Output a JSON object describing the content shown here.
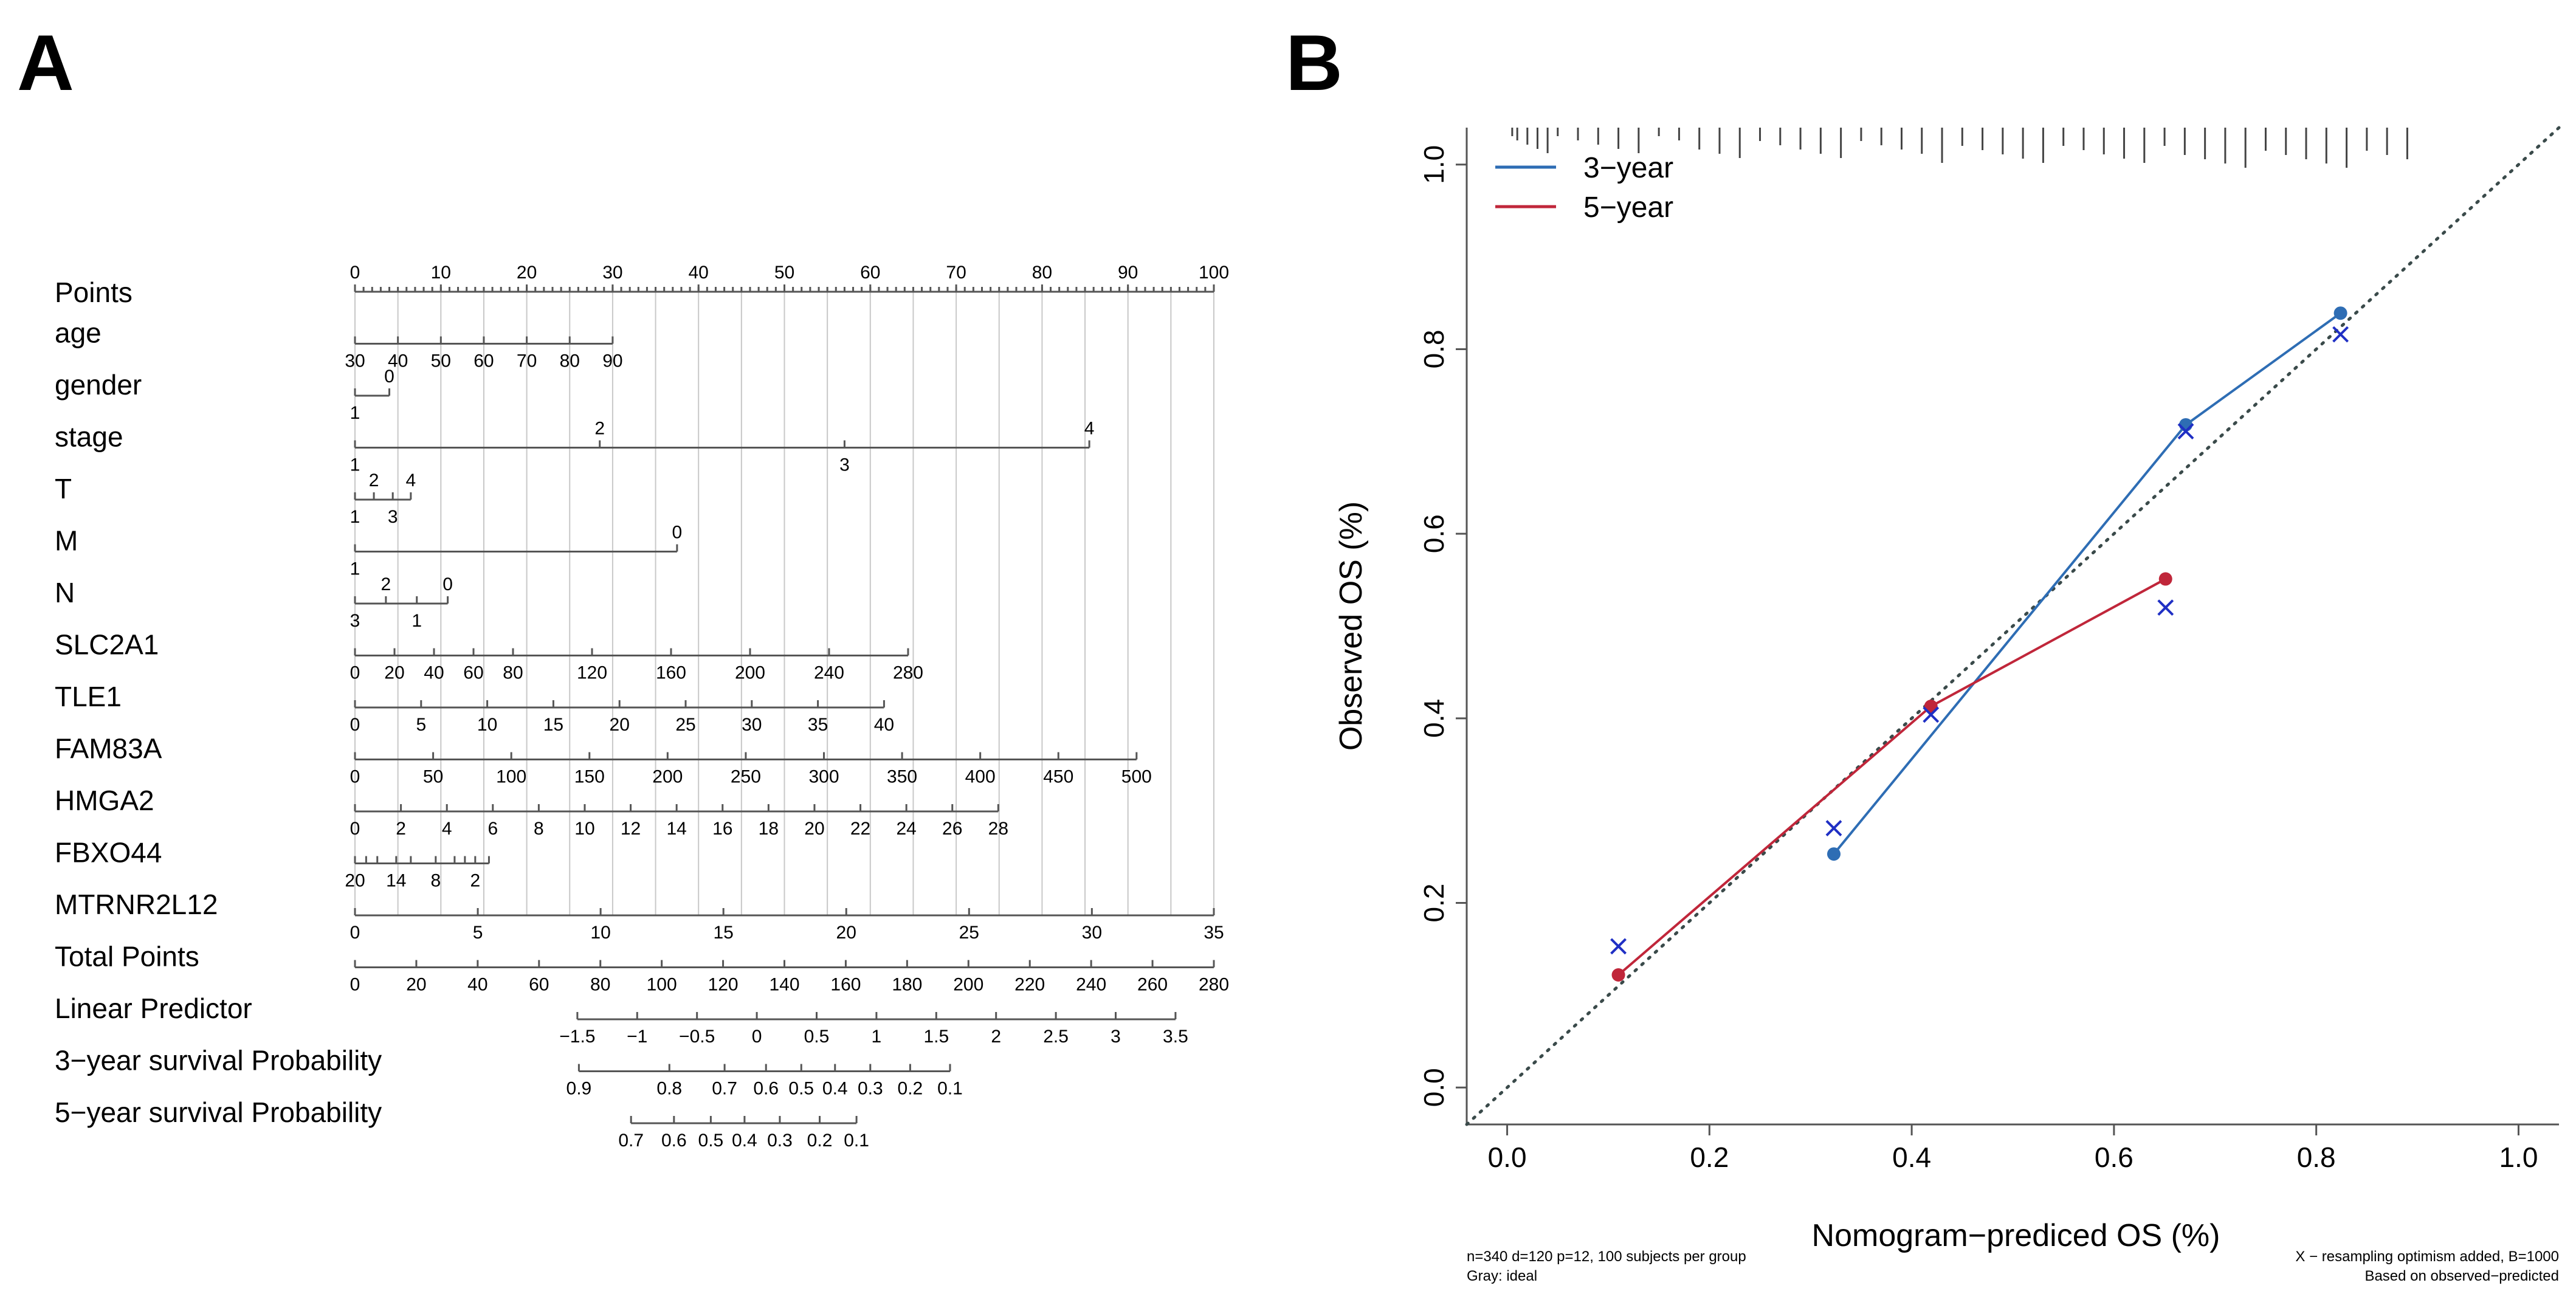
{
  "panels": {
    "a_label": "A",
    "b_label": "B"
  },
  "chart_data": [
    {
      "type": "nomogram",
      "point_range": [
        0,
        100
      ],
      "total_point_range": [
        0,
        280
      ],
      "rows": [
        {
          "name": "Points",
          "ticks": [
            {
              "t": "0",
              "p": 0,
              "pos": "above"
            },
            {
              "t": "10",
              "p": 10,
              "pos": "above"
            },
            {
              "t": "20",
              "p": 20,
              "pos": "above"
            },
            {
              "t": "30",
              "p": 30,
              "pos": "above"
            },
            {
              "t": "40",
              "p": 40,
              "pos": "above"
            },
            {
              "t": "50",
              "p": 50,
              "pos": "above"
            },
            {
              "t": "60",
              "p": 60,
              "pos": "above"
            },
            {
              "t": "70",
              "p": 70,
              "pos": "above"
            },
            {
              "t": "80",
              "p": 80,
              "pos": "above"
            },
            {
              "t": "90",
              "p": 90,
              "pos": "above"
            },
            {
              "t": "100",
              "p": 100,
              "pos": "above"
            }
          ]
        },
        {
          "name": "age",
          "ticks": [
            {
              "t": "30",
              "p": 0,
              "pos": "below"
            },
            {
              "t": "40",
              "p": 5,
              "pos": "below"
            },
            {
              "t": "50",
              "p": 10,
              "pos": "below"
            },
            {
              "t": "60",
              "p": 15,
              "pos": "below"
            },
            {
              "t": "70",
              "p": 20,
              "pos": "below"
            },
            {
              "t": "80",
              "p": 25,
              "pos": "below"
            },
            {
              "t": "90",
              "p": 30,
              "pos": "below"
            }
          ]
        },
        {
          "name": "gender",
          "ticks": [
            {
              "t": "1",
              "p": 0,
              "pos": "below"
            },
            {
              "t": "0",
              "p": 4,
              "pos": "above"
            }
          ]
        },
        {
          "name": "stage",
          "ticks": [
            {
              "t": "1",
              "p": 0,
              "pos": "below"
            },
            {
              "t": "2",
              "p": 28.5,
              "pos": "above"
            },
            {
              "t": "3",
              "p": 57,
              "pos": "below"
            },
            {
              "t": "4",
              "p": 85.5,
              "pos": "above"
            }
          ]
        },
        {
          "name": "T",
          "ticks": [
            {
              "t": "1",
              "p": 0,
              "pos": "below"
            },
            {
              "t": "2",
              "p": 2.2,
              "pos": "above"
            },
            {
              "t": "3",
              "p": 4.4,
              "pos": "below"
            },
            {
              "t": "4",
              "p": 6.5,
              "pos": "above"
            }
          ]
        },
        {
          "name": "M",
          "ticks": [
            {
              "t": "1",
              "p": 0,
              "pos": "below"
            },
            {
              "t": "0",
              "p": 37.5,
              "pos": "above"
            }
          ]
        },
        {
          "name": "N",
          "ticks": [
            {
              "t": "3",
              "p": 0,
              "pos": "below"
            },
            {
              "t": "2",
              "p": 3.6,
              "pos": "above"
            },
            {
              "t": "1",
              "p": 7.2,
              "pos": "below"
            },
            {
              "t": "0",
              "p": 10.8,
              "pos": "above"
            }
          ]
        },
        {
          "name": "SLC2A1",
          "ticks": [
            {
              "t": "0",
              "p": 0,
              "pos": "below"
            },
            {
              "t": "20",
              "p": 4.6,
              "pos": "below"
            },
            {
              "t": "40",
              "p": 9.2,
              "pos": "below"
            },
            {
              "t": "60",
              "p": 13.8,
              "pos": "below"
            },
            {
              "t": "80",
              "p": 18.4,
              "pos": "below"
            },
            {
              "t": "120",
              "p": 27.6,
              "pos": "below"
            },
            {
              "t": "160",
              "p": 36.8,
              "pos": "below"
            },
            {
              "t": "200",
              "p": 46,
              "pos": "below"
            },
            {
              "t": "240",
              "p": 55.2,
              "pos": "below"
            },
            {
              "t": "280",
              "p": 64.4,
              "pos": "below"
            }
          ]
        },
        {
          "name": "TLE1",
          "ticks": [
            {
              "t": "0",
              "p": 0,
              "pos": "below"
            },
            {
              "t": "5",
              "p": 7.7,
              "pos": "below"
            },
            {
              "t": "10",
              "p": 15.4,
              "pos": "below"
            },
            {
              "t": "15",
              "p": 23.1,
              "pos": "below"
            },
            {
              "t": "20",
              "p": 30.8,
              "pos": "below"
            },
            {
              "t": "25",
              "p": 38.5,
              "pos": "below"
            },
            {
              "t": "30",
              "p": 46.2,
              "pos": "below"
            },
            {
              "t": "35",
              "p": 53.9,
              "pos": "below"
            },
            {
              "t": "40",
              "p": 61.6,
              "pos": "below"
            }
          ]
        },
        {
          "name": "FAM83A",
          "ticks": [
            {
              "t": "0",
              "p": 0,
              "pos": "below"
            },
            {
              "t": "50",
              "p": 9.1,
              "pos": "below"
            },
            {
              "t": "100",
              "p": 18.2,
              "pos": "below"
            },
            {
              "t": "150",
              "p": 27.3,
              "pos": "below"
            },
            {
              "t": "200",
              "p": 36.4,
              "pos": "below"
            },
            {
              "t": "250",
              "p": 45.5,
              "pos": "below"
            },
            {
              "t": "300",
              "p": 54.6,
              "pos": "below"
            },
            {
              "t": "350",
              "p": 63.7,
              "pos": "below"
            },
            {
              "t": "400",
              "p": 72.8,
              "pos": "below"
            },
            {
              "t": "450",
              "p": 81.9,
              "pos": "below"
            },
            {
              "t": "500",
              "p": 91,
              "pos": "below"
            }
          ]
        },
        {
          "name": "HMGA2",
          "ticks": [
            {
              "t": "0",
              "p": 0,
              "pos": "below"
            },
            {
              "t": "2",
              "p": 5.35,
              "pos": "below"
            },
            {
              "t": "4",
              "p": 10.7,
              "pos": "below"
            },
            {
              "t": "6",
              "p": 16.05,
              "pos": "below"
            },
            {
              "t": "8",
              "p": 21.4,
              "pos": "below"
            },
            {
              "t": "10",
              "p": 26.75,
              "pos": "below"
            },
            {
              "t": "12",
              "p": 32.1,
              "pos": "below"
            },
            {
              "t": "14",
              "p": 37.45,
              "pos": "below"
            },
            {
              "t": "16",
              "p": 42.8,
              "pos": "below"
            },
            {
              "t": "18",
              "p": 48.15,
              "pos": "below"
            },
            {
              "t": "20",
              "p": 53.5,
              "pos": "below"
            },
            {
              "t": "22",
              "p": 58.85,
              "pos": "below"
            },
            {
              "t": "24",
              "p": 64.2,
              "pos": "below"
            },
            {
              "t": "26",
              "p": 69.55,
              "pos": "below"
            },
            {
              "t": "28",
              "p": 74.9,
              "pos": "below"
            }
          ]
        },
        {
          "name": "FBXO44",
          "ticks": [
            {
              "t": "20",
              "p": 0,
              "pos": "below"
            },
            {
              "t": "",
              "p": 1.3,
              "pos": "below"
            },
            {
              "t": "",
              "p": 2.6,
              "pos": "below"
            },
            {
              "t": "14",
              "p": 4.8,
              "pos": "below"
            },
            {
              "t": "",
              "p": 6.5,
              "pos": "below"
            },
            {
              "t": "8",
              "p": 9.4,
              "pos": "below"
            },
            {
              "t": "",
              "p": 11.6,
              "pos": "below"
            },
            {
              "t": "",
              "p": 12.8,
              "pos": "below"
            },
            {
              "t": "2",
              "p": 14,
              "pos": "below"
            },
            {
              "t": "",
              "p": 15.6,
              "pos": "below"
            }
          ]
        },
        {
          "name": "MTRNR2L12",
          "ticks": [
            {
              "t": "0",
              "p": 0,
              "pos": "below"
            },
            {
              "t": "5",
              "p": 14.3,
              "pos": "below"
            },
            {
              "t": "10",
              "p": 28.6,
              "pos": "below"
            },
            {
              "t": "15",
              "p": 42.9,
              "pos": "below"
            },
            {
              "t": "20",
              "p": 57.2,
              "pos": "below"
            },
            {
              "t": "25",
              "p": 71.5,
              "pos": "below"
            },
            {
              "t": "30",
              "p": 85.8,
              "pos": "below"
            },
            {
              "t": "35",
              "p": 100,
              "pos": "below"
            }
          ]
        },
        {
          "name": "Total Points",
          "scale": "total",
          "ticks": [
            {
              "t": "0",
              "p": 0,
              "pos": "below"
            },
            {
              "t": "20",
              "p": 20,
              "pos": "below"
            },
            {
              "t": "40",
              "p": 40,
              "pos": "below"
            },
            {
              "t": "60",
              "p": 60,
              "pos": "below"
            },
            {
              "t": "80",
              "p": 80,
              "pos": "below"
            },
            {
              "t": "100",
              "p": 100,
              "pos": "below"
            },
            {
              "t": "120",
              "p": 120,
              "pos": "below"
            },
            {
              "t": "140",
              "p": 140,
              "pos": "below"
            },
            {
              "t": "160",
              "p": 160,
              "pos": "below"
            },
            {
              "t": "180",
              "p": 180,
              "pos": "below"
            },
            {
              "t": "200",
              "p": 200,
              "pos": "below"
            },
            {
              "t": "220",
              "p": 220,
              "pos": "below"
            },
            {
              "t": "240",
              "p": 240,
              "pos": "below"
            },
            {
              "t": "260",
              "p": 260,
              "pos": "below"
            },
            {
              "t": "280",
              "p": 280,
              "pos": "below"
            }
          ]
        },
        {
          "name": "Linear Predictor",
          "scale": "total",
          "ticks": [
            {
              "t": "−1.5",
              "p": 72.5,
              "pos": "below"
            },
            {
              "t": "−1",
              "p": 92,
              "pos": "below"
            },
            {
              "t": "−0.5",
              "p": 111.5,
              "pos": "below"
            },
            {
              "t": "0",
              "p": 131,
              "pos": "below"
            },
            {
              "t": "0.5",
              "p": 150.5,
              "pos": "below"
            },
            {
              "t": "1",
              "p": 170,
              "pos": "below"
            },
            {
              "t": "1.5",
              "p": 189.5,
              "pos": "below"
            },
            {
              "t": "2",
              "p": 209,
              "pos": "below"
            },
            {
              "t": "2.5",
              "p": 228.5,
              "pos": "below"
            },
            {
              "t": "3",
              "p": 248,
              "pos": "below"
            },
            {
              "t": "3.5",
              "p": 267.5,
              "pos": "below"
            }
          ]
        },
        {
          "name": "3−year survival Probability",
          "scale": "total",
          "ticks": [
            {
              "t": "0.9",
              "p": 73,
              "pos": "below"
            },
            {
              "t": "0.8",
              "p": 102.5,
              "pos": "below"
            },
            {
              "t": "0.7",
              "p": 120.5,
              "pos": "below"
            },
            {
              "t": "0.6",
              "p": 134,
              "pos": "below"
            },
            {
              "t": "0.5",
              "p": 145.5,
              "pos": "below"
            },
            {
              "t": "0.4",
              "p": 156.5,
              "pos": "below"
            },
            {
              "t": "0.3",
              "p": 168,
              "pos": "below"
            },
            {
              "t": "0.2",
              "p": 181,
              "pos": "below"
            },
            {
              "t": "0.1",
              "p": 194,
              "pos": "below"
            }
          ]
        },
        {
          "name": "5−year survival Probability",
          "scale": "total",
          "ticks": [
            {
              "t": "0.7",
              "p": 90,
              "pos": "below"
            },
            {
              "t": "0.6",
              "p": 104,
              "pos": "below"
            },
            {
              "t": "0.5",
              "p": 116,
              "pos": "below"
            },
            {
              "t": "0.4",
              "p": 127,
              "pos": "below"
            },
            {
              "t": "0.3",
              "p": 138.5,
              "pos": "below"
            },
            {
              "t": "0.2",
              "p": 151.5,
              "pos": "below"
            },
            {
              "t": "0.1",
              "p": 163.5,
              "pos": "below"
            }
          ]
        }
      ]
    },
    {
      "type": "calibration",
      "xlabel": "Nomogram−prediced OS (%)",
      "ylabel": "Observed OS (%)",
      "xlim": [
        -0.04,
        1.04
      ],
      "ylim": [
        -0.04,
        1.04
      ],
      "xticks": [
        "0.0",
        "0.2",
        "0.4",
        "0.6",
        "0.8",
        "1.0"
      ],
      "yticks": [
        "0.0",
        "0.2",
        "0.4",
        "0.6",
        "0.8",
        "1.0"
      ],
      "legend": [
        {
          "label": "3−year",
          "color": "#2e6db4"
        },
        {
          "label": "5−year",
          "color": "#c0263a"
        }
      ],
      "series": [
        {
          "name": "3−year",
          "color": "#2e6db4",
          "predicted": [
            0.323,
            0.671,
            0.824
          ],
          "observed": [
            0.253,
            0.718,
            0.839
          ],
          "corrected": [
            0.281,
            0.711,
            0.816
          ]
        },
        {
          "name": "5−year",
          "color": "#c0263a",
          "predicted": [
            0.11,
            0.419,
            0.651
          ],
          "observed": [
            0.122,
            0.413,
            0.551
          ],
          "corrected": [
            0.153,
            0.404,
            0.52
          ]
        }
      ],
      "rug": [
        0.005,
        0.01,
        0.02,
        0.03,
        0.04,
        0.05,
        0.07,
        0.09,
        0.11,
        0.13,
        0.15,
        0.17,
        0.19,
        0.21,
        0.23,
        0.25,
        0.27,
        0.29,
        0.31,
        0.33,
        0.35,
        0.37,
        0.39,
        0.41,
        0.43,
        0.45,
        0.47,
        0.49,
        0.51,
        0.53,
        0.55,
        0.57,
        0.59,
        0.61,
        0.63,
        0.65,
        0.67,
        0.69,
        0.71,
        0.73,
        0.75,
        0.77,
        0.79,
        0.81,
        0.83,
        0.85,
        0.87,
        0.89
      ],
      "notes": {
        "left_1": "n=340 d=120 p=12, 100 subjects per group",
        "left_2": "Gray: ideal",
        "right_1": "X − resampling optimism added, B=1000",
        "right_2": "Based on observed−predicted"
      }
    }
  ]
}
